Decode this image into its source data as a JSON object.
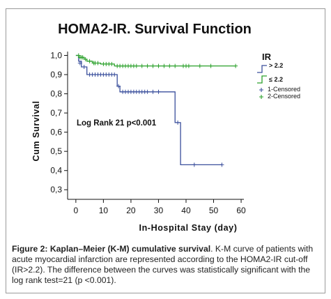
{
  "chart_data": {
    "type": "line",
    "subtype": "kaplan-meier-step",
    "title": "HOMA2-IR. Survival Function",
    "xlabel": "In-Hospital Stay (day)",
    "ylabel": "Cum Survival",
    "xlim": [
      -3,
      61
    ],
    "ylim": [
      0.25,
      1.02
    ],
    "x_ticks": [
      0,
      10,
      20,
      30,
      40,
      50,
      60
    ],
    "x_tick_labels": [
      "0",
      "10",
      "20",
      "30",
      "40",
      "50",
      "60"
    ],
    "y_ticks": [
      0.3,
      0.4,
      0.5,
      0.6,
      0.7,
      0.8,
      0.9,
      1.0
    ],
    "y_tick_labels": [
      "0,3",
      "0,4",
      "0,5",
      "0,6",
      "0,7",
      "0,8",
      "0,9",
      "1,0"
    ],
    "grid": false,
    "legend_position": "right",
    "annotation": "Log Rank 21  p<0.001",
    "legend": {
      "title": "IR",
      "items": [
        {
          "label": "> 2.2",
          "color": "#3a4f9c",
          "kind": "line"
        },
        {
          "label": "≤ 2.2",
          "color": "#2aa02a",
          "kind": "line"
        },
        {
          "label": "1-Censored",
          "color": "#3a4f9c",
          "kind": "censor"
        },
        {
          "label": "2-Censored",
          "color": "#2aa02a",
          "kind": "censor"
        }
      ]
    },
    "series": [
      {
        "name": "> 2.2",
        "color": "#3a4f9c",
        "steps": [
          [
            0,
            1.0
          ],
          [
            1,
            0.97
          ],
          [
            2,
            0.94
          ],
          [
            4,
            0.9
          ],
          [
            15,
            0.84
          ],
          [
            16,
            0.81
          ],
          [
            36,
            0.65
          ],
          [
            38,
            0.43
          ],
          [
            53,
            0.43
          ]
        ],
        "censored": [
          [
            1.5,
            0.96
          ],
          [
            3,
            0.94
          ],
          [
            5,
            0.9
          ],
          [
            6,
            0.9
          ],
          [
            7,
            0.9
          ],
          [
            8,
            0.9
          ],
          [
            9,
            0.9
          ],
          [
            10,
            0.9
          ],
          [
            11,
            0.9
          ],
          [
            12,
            0.9
          ],
          [
            13,
            0.9
          ],
          [
            14,
            0.9
          ],
          [
            15.5,
            0.84
          ],
          [
            17,
            0.81
          ],
          [
            18,
            0.81
          ],
          [
            19,
            0.81
          ],
          [
            20,
            0.81
          ],
          [
            21,
            0.81
          ],
          [
            22,
            0.81
          ],
          [
            23,
            0.81
          ],
          [
            24,
            0.81
          ],
          [
            25,
            0.81
          ],
          [
            26,
            0.81
          ],
          [
            28,
            0.81
          ],
          [
            30,
            0.81
          ],
          [
            37,
            0.65
          ],
          [
            43,
            0.43
          ],
          [
            53,
            0.43
          ]
        ]
      },
      {
        "name": "≤ 2.2",
        "color": "#2aa02a",
        "steps": [
          [
            0,
            1.0
          ],
          [
            1,
            0.99
          ],
          [
            3,
            0.98
          ],
          [
            4,
            0.97
          ],
          [
            6,
            0.96
          ],
          [
            9,
            0.955
          ],
          [
            14,
            0.945
          ],
          [
            58,
            0.945
          ]
        ],
        "censored": [
          [
            1,
            1.0
          ],
          [
            1.5,
            0.99
          ],
          [
            2,
            0.99
          ],
          [
            2.5,
            0.99
          ],
          [
            3.5,
            0.98
          ],
          [
            5,
            0.97
          ],
          [
            6.5,
            0.96
          ],
          [
            7,
            0.96
          ],
          [
            8,
            0.96
          ],
          [
            10,
            0.955
          ],
          [
            11,
            0.955
          ],
          [
            12,
            0.955
          ],
          [
            13,
            0.955
          ],
          [
            15,
            0.945
          ],
          [
            16,
            0.945
          ],
          [
            17,
            0.945
          ],
          [
            18,
            0.945
          ],
          [
            19,
            0.945
          ],
          [
            20,
            0.945
          ],
          [
            21,
            0.945
          ],
          [
            22,
            0.945
          ],
          [
            24,
            0.945
          ],
          [
            26,
            0.945
          ],
          [
            28,
            0.945
          ],
          [
            30,
            0.945
          ],
          [
            32,
            0.945
          ],
          [
            34,
            0.945
          ],
          [
            36,
            0.945
          ],
          [
            39,
            0.945
          ],
          [
            40,
            0.945
          ],
          [
            41,
            0.945
          ],
          [
            45,
            0.945
          ],
          [
            49,
            0.945
          ],
          [
            58,
            0.945
          ]
        ]
      }
    ]
  },
  "caption": {
    "label": "Figure 2: Kaplan–Meier (K-M) cumulative survival",
    "text": ". K-M curve of patients with acute myocardial infarction are represented according to the HOMA2-IR cut-off (IR>2.2). The difference between the curves was statistically significant with the log rank test=21 (p <0.001)."
  }
}
